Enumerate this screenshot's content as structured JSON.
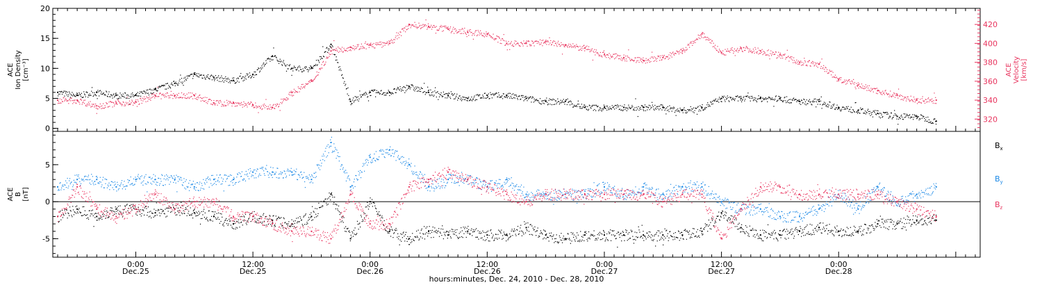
{
  "colors": {
    "black": "#000000",
    "pink": "#e8345e",
    "blue": "#1a88e6",
    "axis": "#000000"
  },
  "chart_data": [
    {
      "type": "scatter",
      "panel": "top",
      "left_axis": {
        "label_lines": [
          "ACE",
          "Ion Density",
          "[cm⁻³]"
        ],
        "ylim": [
          -0.5,
          20
        ],
        "ticks": [
          0,
          5,
          10,
          15,
          20
        ],
        "tick_labels": [
          "0",
          "5",
          "10",
          "15",
          "20"
        ]
      },
      "right_axis": {
        "label_lines": [
          "ACE",
          "Velocity",
          "[km/s]"
        ],
        "ylim": [
          307,
          437
        ],
        "ticks": [
          320,
          340,
          360,
          380,
          400,
          420
        ],
        "tick_labels": [
          "320",
          "340",
          "360",
          "380",
          "400",
          "420"
        ],
        "color": "#e8345e"
      },
      "xlim": [
        -8.5,
        86.5
      ],
      "series": [
        {
          "color": "#000000",
          "axis": "left",
          "x": [
            -8,
            -6,
            -4,
            -2,
            0,
            2,
            4,
            6,
            8,
            10,
            12,
            14,
            16,
            18,
            20,
            22,
            24,
            26,
            28,
            30,
            32,
            34,
            36,
            38,
            40,
            42,
            44,
            46,
            48,
            50,
            52,
            54,
            56,
            58,
            60,
            62,
            64,
            66,
            68,
            70,
            72,
            74,
            76,
            78,
            80,
            82
          ],
          "y": [
            6,
            5.5,
            6,
            5.5,
            5.5,
            6.5,
            7.5,
            9,
            8.5,
            8,
            9,
            12,
            10,
            10,
            14,
            4.5,
            6,
            6,
            7,
            6,
            5.5,
            5,
            5.5,
            5.5,
            5,
            4.5,
            4.5,
            3.5,
            3.5,
            3.5,
            3.5,
            3.5,
            3,
            3.5,
            5,
            5,
            5,
            5,
            4.5,
            4.5,
            3.5,
            3,
            2.5,
            2,
            2,
            1.2
          ]
        },
        {
          "color": "#e8345e",
          "axis": "right",
          "x": [
            -8,
            -6,
            -4,
            -2,
            0,
            2,
            4,
            6,
            8,
            10,
            12,
            14,
            16,
            18,
            20,
            22,
            24,
            26,
            28,
            30,
            32,
            34,
            36,
            38,
            40,
            42,
            44,
            46,
            48,
            50,
            52,
            54,
            56,
            58,
            60,
            62,
            64,
            66,
            68,
            70,
            72,
            74,
            76,
            78,
            80,
            82
          ],
          "y": [
            340,
            340,
            334,
            337,
            338,
            345,
            345,
            345,
            337,
            337,
            335,
            332,
            348,
            360,
            392,
            396,
            398,
            400,
            420,
            418,
            415,
            412,
            410,
            400,
            400,
            402,
            398,
            395,
            388,
            385,
            382,
            385,
            392,
            410,
            390,
            395,
            392,
            388,
            380,
            378,
            362,
            356,
            350,
            345,
            340,
            340
          ]
        }
      ]
    },
    {
      "type": "scatter",
      "panel": "bottom",
      "left_axis": {
        "label_lines": [
          "ACE",
          "B",
          "[nT]"
        ],
        "ylim": [
          -7.5,
          9.5
        ],
        "ticks": [
          -5,
          0,
          5
        ],
        "tick_labels": [
          "-5",
          "0",
          "5"
        ]
      },
      "xlim": [
        -8.5,
        86.5
      ],
      "zero_line": true,
      "legend": {
        "placement": "right",
        "entries": [
          "Bx",
          "By",
          "Bz"
        ]
      },
      "series": [
        {
          "name": "Bx",
          "color": "#000000",
          "x": [
            -8,
            -6,
            -4,
            -2,
            0,
            2,
            4,
            6,
            8,
            10,
            12,
            14,
            16,
            18,
            20,
            22,
            24,
            26,
            28,
            30,
            32,
            34,
            36,
            38,
            40,
            42,
            44,
            46,
            48,
            50,
            52,
            54,
            56,
            58,
            60,
            62,
            64,
            66,
            68,
            70,
            72,
            74,
            76,
            78,
            80,
            82
          ],
          "y": [
            -2,
            -1,
            -2,
            -1,
            -1,
            -1.5,
            -1,
            -1.5,
            -2,
            -3,
            -2,
            -2.5,
            -3,
            -2,
            1,
            -5,
            0,
            -4,
            -5,
            -4,
            -4.5,
            -4,
            -4.5,
            -4.5,
            -3.5,
            -4.5,
            -5,
            -4.5,
            -4.5,
            -4.5,
            -4.5,
            -4.5,
            -4.5,
            -4,
            -1.5,
            -3.5,
            -4.5,
            -4.5,
            -4,
            -3.5,
            -4,
            -4,
            -3,
            -3,
            -2.5,
            -2.5
          ]
        },
        {
          "name": "By",
          "color": "#1a88e6",
          "x": [
            -8,
            -6,
            -4,
            -2,
            0,
            2,
            4,
            6,
            8,
            10,
            12,
            14,
            16,
            18,
            20,
            22,
            24,
            26,
            28,
            30,
            32,
            34,
            36,
            38,
            40,
            42,
            44,
            46,
            48,
            50,
            52,
            54,
            56,
            58,
            60,
            62,
            64,
            66,
            68,
            70,
            72,
            74,
            76,
            78,
            80,
            82
          ],
          "y": [
            2,
            3,
            3,
            2,
            3,
            3,
            3,
            2,
            3,
            3,
            4,
            4,
            4,
            3,
            8,
            2,
            6,
            7,
            5,
            2,
            3,
            3,
            2,
            3,
            1,
            1,
            1,
            1,
            2,
            1,
            2,
            1,
            2,
            2,
            0,
            -1,
            -1,
            -2,
            -2,
            -1,
            1,
            -1,
            2,
            0,
            1,
            2
          ]
        },
        {
          "name": "Bz",
          "color": "#e8345e",
          "x": [
            -8,
            -6,
            -4,
            -2,
            0,
            2,
            4,
            6,
            8,
            10,
            12,
            14,
            16,
            18,
            20,
            22,
            24,
            26,
            28,
            30,
            32,
            34,
            36,
            38,
            40,
            42,
            44,
            46,
            48,
            50,
            52,
            54,
            56,
            58,
            60,
            62,
            64,
            66,
            68,
            70,
            72,
            74,
            76,
            78,
            80,
            82
          ],
          "y": [
            -2,
            2,
            -1,
            -2,
            -1,
            1,
            -1,
            0,
            0,
            -2,
            -2,
            -3,
            -4,
            -4,
            -5,
            1,
            -3,
            -3,
            2,
            3,
            4,
            3,
            2,
            1,
            0,
            1,
            1,
            1,
            1,
            1,
            1,
            0,
            1,
            1,
            -5,
            -1,
            2,
            2,
            1,
            1,
            1,
            1,
            1,
            0,
            -1,
            -2
          ]
        }
      ],
      "legend_labels": [
        {
          "main": "B",
          "sub": "x",
          "color": "#000000"
        },
        {
          "main": "B",
          "sub": "y",
          "color": "#1a88e6"
        },
        {
          "main": "B",
          "sub": "z",
          "color": "#e8345e"
        }
      ]
    }
  ],
  "x_axis": {
    "ticks": [
      0,
      12,
      24,
      36,
      48,
      60,
      72,
      84
    ],
    "tick_labels": [
      {
        "time": "0:00",
        "date": "Dec.25"
      },
      {
        "time": "12:00",
        "date": "Dec.25"
      },
      {
        "time": "0:00",
        "date": "Dec.26"
      },
      {
        "time": "12:00",
        "date": "Dec.26"
      },
      {
        "time": "0:00",
        "date": "Dec.27"
      },
      {
        "time": "12:00",
        "date": "Dec.27"
      },
      {
        "time": "0:00",
        "date": "Dec.28"
      }
    ],
    "tick_label_hours": [
      0,
      12,
      24,
      36,
      48,
      60,
      72
    ],
    "title": "hours:minutes, Dec. 24, 2010 - Dec. 28, 2010"
  }
}
